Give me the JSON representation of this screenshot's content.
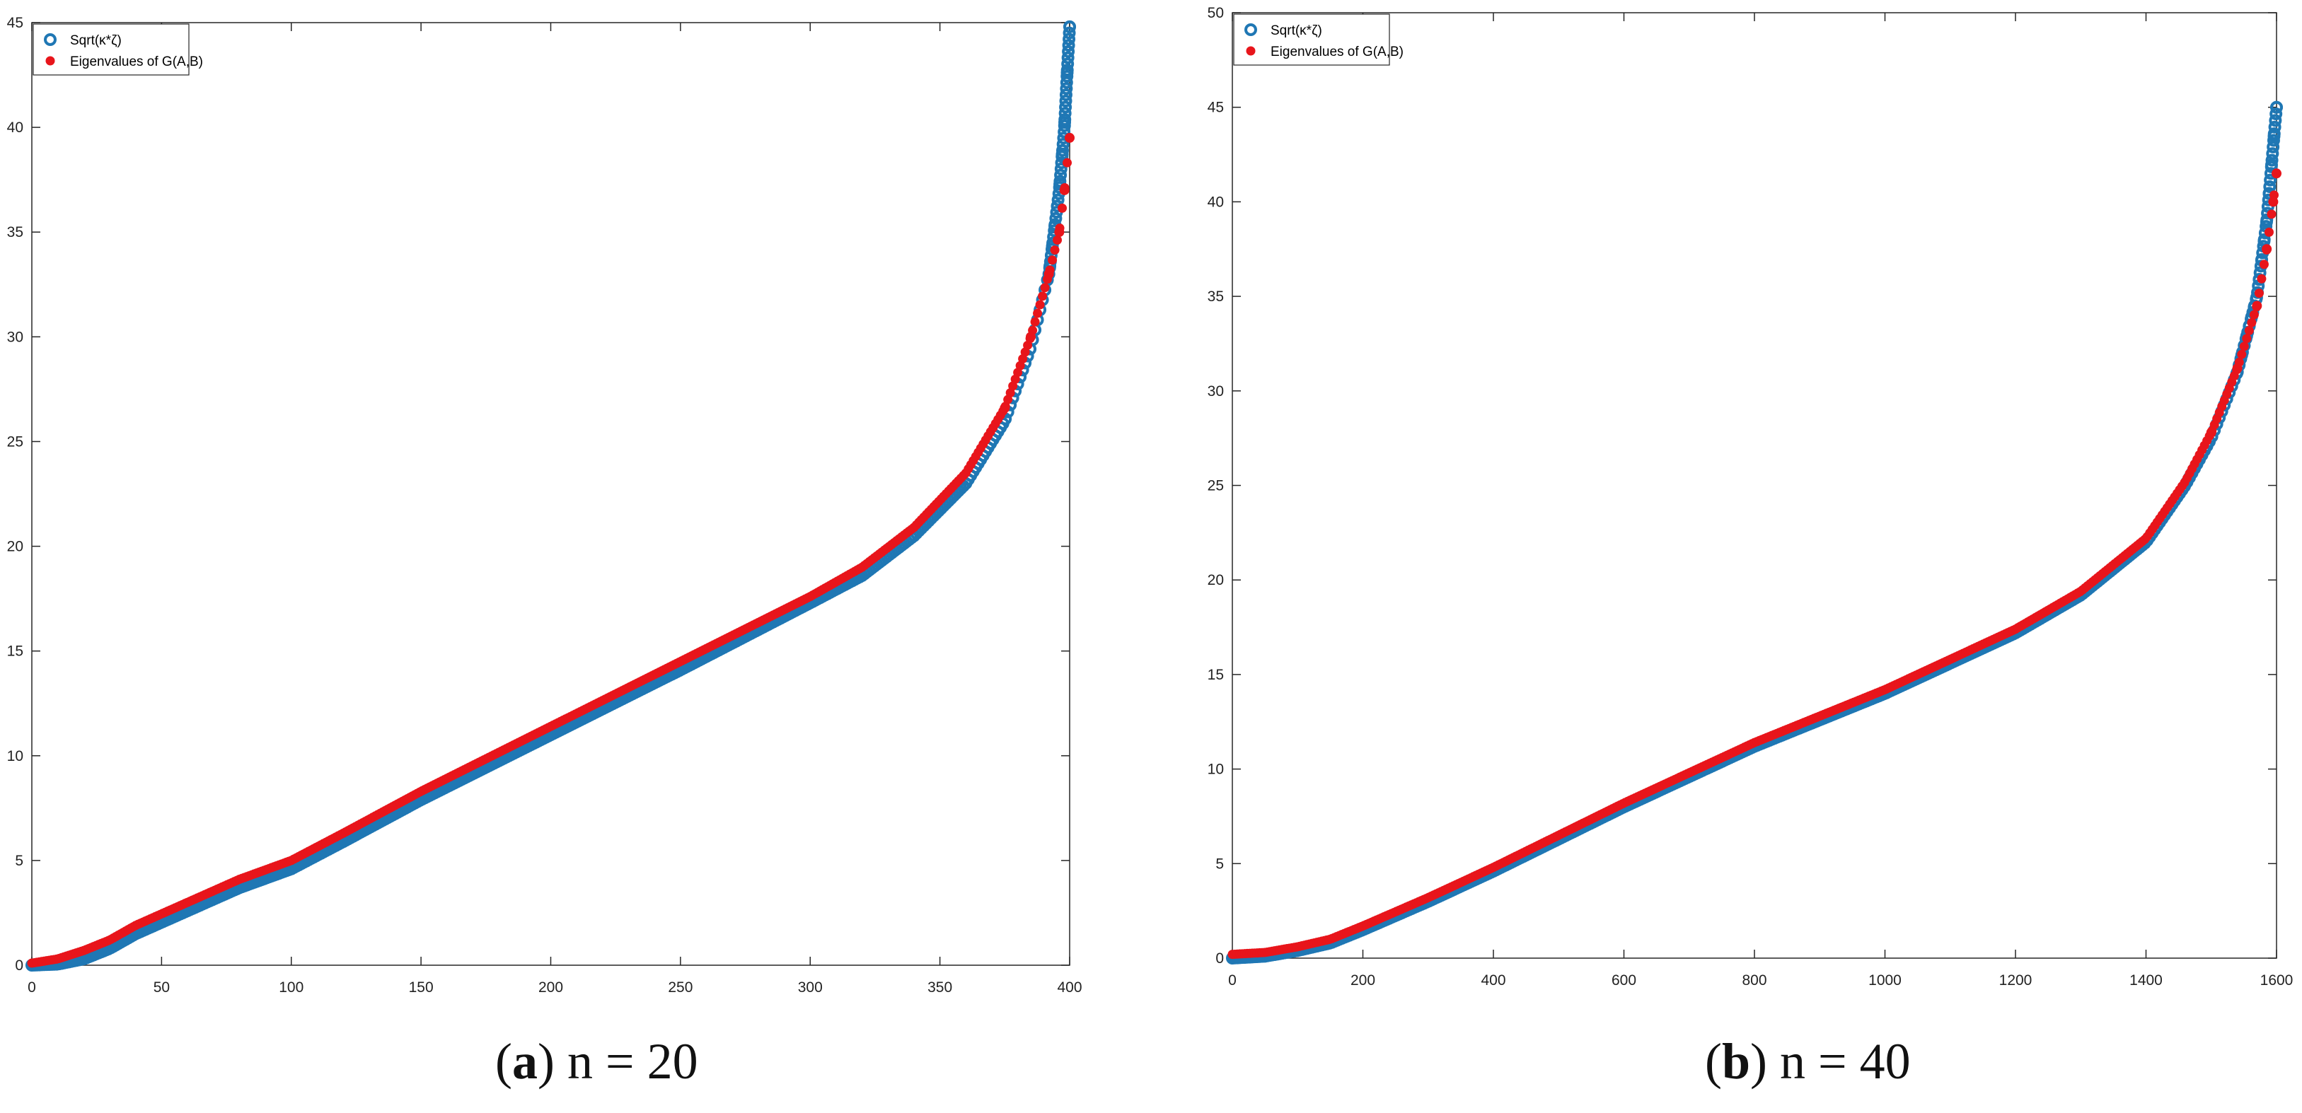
{
  "chart_data": [
    {
      "type": "scatter",
      "panel_label": "a",
      "caption": "n = 20",
      "xlim": [
        0,
        400
      ],
      "ylim": [
        0,
        45
      ],
      "xticks": [
        0,
        50,
        100,
        150,
        200,
        250,
        300,
        350,
        400
      ],
      "xtick_labels": [
        "0",
        "50",
        "100",
        "150",
        "200",
        "250",
        "300",
        "350",
        "400"
      ],
      "yticks": [
        0,
        5,
        10,
        15,
        20,
        25,
        30,
        35,
        40,
        45
      ],
      "ytick_labels": [
        "0",
        "5",
        "10",
        "15",
        "20",
        "25",
        "30",
        "35",
        "40",
        "45"
      ],
      "grid": false,
      "legend_position": "top-left",
      "series": [
        {
          "name": "Sqrt(κ*ζ)",
          "marker": "open-circle",
          "color": "#1f77b4",
          "points": [
            [
              0,
              0
            ],
            [
              10,
              0.05
            ],
            [
              20,
              0.3
            ],
            [
              30,
              0.8
            ],
            [
              40,
              1.5
            ],
            [
              60,
              2.6
            ],
            [
              80,
              3.7
            ],
            [
              100,
              4.6
            ],
            [
              120,
              5.9
            ],
            [
              150,
              7.9
            ],
            [
              200,
              11.0
            ],
            [
              250,
              14.1
            ],
            [
              300,
              17.3
            ],
            [
              320,
              18.6
            ],
            [
              340,
              20.5
            ],
            [
              360,
              23.0
            ],
            [
              375,
              26.0
            ],
            [
              385,
              29.5
            ],
            [
              392,
              33.0
            ],
            [
              396,
              37.0
            ],
            [
              398,
              40.0
            ],
            [
              399,
              42.5
            ],
            [
              400,
              44.8
            ]
          ]
        },
        {
          "name": "Eigenvalues of G(A,B)",
          "marker": "filled-circle",
          "color": "#e8151b",
          "points": [
            [
              0,
              0.1
            ],
            [
              10,
              0.3
            ],
            [
              20,
              0.7
            ],
            [
              30,
              1.2
            ],
            [
              40,
              1.9
            ],
            [
              60,
              3.0
            ],
            [
              80,
              4.1
            ],
            [
              100,
              5.0
            ],
            [
              120,
              6.3
            ],
            [
              150,
              8.3
            ],
            [
              200,
              11.4
            ],
            [
              250,
              14.5
            ],
            [
              300,
              17.6
            ],
            [
              320,
              19.0
            ],
            [
              340,
              20.9
            ],
            [
              360,
              23.5
            ],
            [
              375,
              26.6
            ],
            [
              385,
              30.0
            ],
            [
              392,
              33.0
            ],
            [
              396,
              35.0
            ],
            [
              398,
              37.0
            ],
            [
              400,
              39.5
            ]
          ]
        }
      ]
    },
    {
      "type": "scatter",
      "panel_label": "b",
      "caption": "n = 40",
      "xlim": [
        0,
        1600
      ],
      "ylim": [
        0,
        50
      ],
      "xticks": [
        0,
        200,
        400,
        600,
        800,
        1000,
        1200,
        1400,
        1600
      ],
      "xtick_labels": [
        "0",
        "200",
        "400",
        "600",
        "800",
        "1000",
        "1200",
        "1400",
        "1600"
      ],
      "yticks": [
        0,
        5,
        10,
        15,
        20,
        25,
        30,
        35,
        40,
        45,
        50
      ],
      "ytick_labels": [
        "0",
        "5",
        "10",
        "15",
        "20",
        "25",
        "30",
        "35",
        "40",
        "45",
        "50"
      ],
      "grid": false,
      "legend_position": "top-left",
      "series": [
        {
          "name": "Sqrt(κ*ζ)",
          "marker": "open-circle",
          "color": "#1f77b4",
          "points": [
            [
              0,
              0
            ],
            [
              50,
              0.1
            ],
            [
              100,
              0.4
            ],
            [
              150,
              0.8
            ],
            [
              200,
              1.5
            ],
            [
              300,
              3.0
            ],
            [
              400,
              4.6
            ],
            [
              600,
              8.0
            ],
            [
              800,
              11.2
            ],
            [
              1000,
              14.0
            ],
            [
              1200,
              17.2
            ],
            [
              1300,
              19.2
            ],
            [
              1400,
              22.0
            ],
            [
              1460,
              25.0
            ],
            [
              1500,
              27.5
            ],
            [
              1540,
              31.0
            ],
            [
              1570,
              35.0
            ],
            [
              1585,
              39.0
            ],
            [
              1595,
              43.0
            ],
            [
              1600,
              45.0
            ]
          ]
        },
        {
          "name": "Eigenvalues of G(A,B)",
          "marker": "filled-circle",
          "color": "#e8151b",
          "points": [
            [
              0,
              0.2
            ],
            [
              50,
              0.3
            ],
            [
              100,
              0.6
            ],
            [
              150,
              1.0
            ],
            [
              200,
              1.7
            ],
            [
              300,
              3.2
            ],
            [
              400,
              4.8
            ],
            [
              600,
              8.2
            ],
            [
              800,
              11.4
            ],
            [
              1000,
              14.2
            ],
            [
              1200,
              17.4
            ],
            [
              1300,
              19.4
            ],
            [
              1400,
              22.2
            ],
            [
              1460,
              25.2
            ],
            [
              1500,
              27.8
            ],
            [
              1540,
              31.2
            ],
            [
              1570,
              34.5
            ],
            [
              1585,
              37.5
            ],
            [
              1595,
              40.0
            ],
            [
              1600,
              41.5
            ]
          ]
        }
      ]
    }
  ]
}
